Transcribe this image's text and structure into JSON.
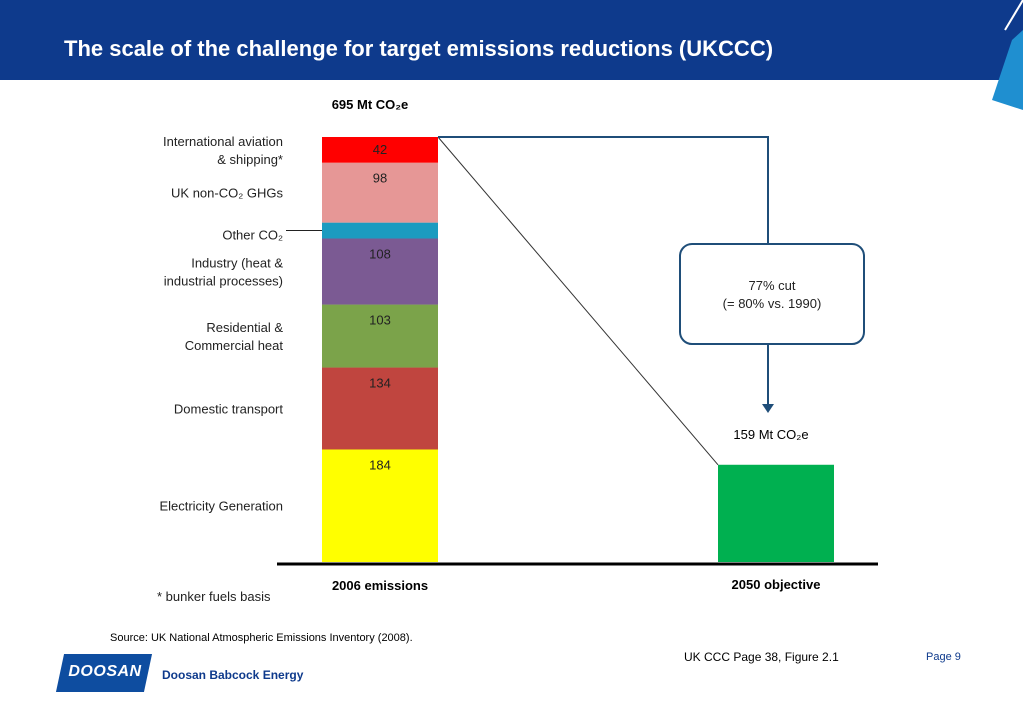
{
  "page": {
    "title": "The scale of the challenge for target emissions reductions (UKCCC)",
    "source": "Source: UK National Atmospheric Emissions Inventory (2008).",
    "reference": "UK CCC Page 38, Figure 2.1",
    "page_number": "Page 9",
    "logo_text": "DOOSAN",
    "company_name": "Doosan Babcock Energy",
    "header_color": "#0e3a8c"
  },
  "chart_data": {
    "type": "bar",
    "stacked": true,
    "unit": "Mt CO2e",
    "categories": [
      "2006 emissions",
      "2050 objective"
    ],
    "top_label_2006": "695 Mt CO₂e",
    "top_label_2050": "159 Mt CO₂e",
    "total_2006": 695,
    "segments_2006": [
      {
        "name": "Electricity Generation",
        "value": 184,
        "label": "184",
        "color": "#ffff00"
      },
      {
        "name": "Domestic transport",
        "value": 134,
        "label": "134",
        "color": "#c0453f"
      },
      {
        "name": "Residential & Commercial heat",
        "value": 103,
        "label": "103",
        "color": "#7ba34a"
      },
      {
        "name": "Industry (heat & industrial processes)",
        "value": 108,
        "label": "108",
        "color": "#7b5a93"
      },
      {
        "name": "Other CO₂",
        "value": 26,
        "label": "",
        "color": "#1b9bc0"
      },
      {
        "name": "UK non-CO₂ GHGs",
        "value": 98,
        "label": "98",
        "color": "#e69796"
      },
      {
        "name": "International aviation & shipping*",
        "value": 42,
        "label": "42",
        "color": "#ff0000"
      }
    ],
    "value_2050": 159,
    "color_2050": "#00b050",
    "annotation": [
      "77% cut",
      "(= 80% vs. 1990)"
    ],
    "footnote": "* bunker fuels basis",
    "side_labels": [
      {
        "segment": "International aviation & shipping*",
        "lines": [
          "International aviation",
          "& shipping*"
        ]
      },
      {
        "segment": "UK non-CO₂ GHGs",
        "lines": [
          "UK non-CO₂ GHGs"
        ]
      },
      {
        "segment": "Other CO₂",
        "lines": [
          "Other CO₂"
        ]
      },
      {
        "segment": "Industry (heat & industrial processes)",
        "lines": [
          "Industry (heat &",
          "industrial processes)"
        ]
      },
      {
        "segment": "Residential & Commercial heat",
        "lines": [
          "Residential &",
          "Commercial heat"
        ]
      },
      {
        "segment": "Domestic transport",
        "lines": [
          "Domestic transport"
        ]
      },
      {
        "segment": "Electricity Generation",
        "lines": [
          "Electricity Generation"
        ]
      }
    ]
  }
}
